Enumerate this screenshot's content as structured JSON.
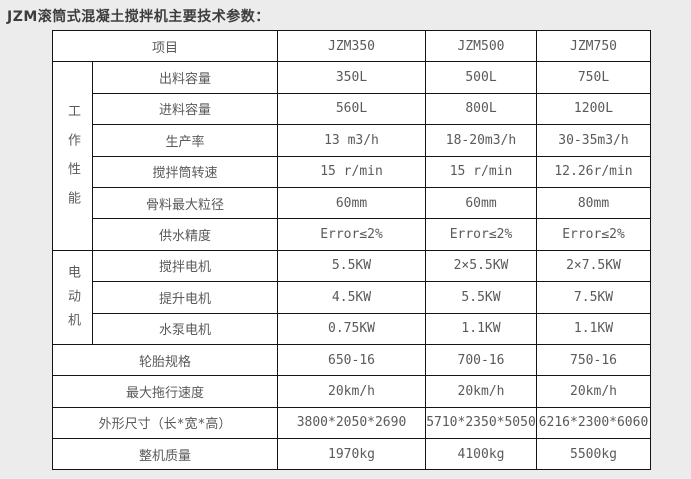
{
  "page": {
    "title": "JZM滚筒式混凝土搅拌机主要技术参数："
  },
  "colors": {
    "page_background": "#ececec",
    "cell_background": "#ffffff",
    "grid_border": "#141414",
    "cell_text": "#5a5a5a",
    "title_text": "#3d3d3d"
  },
  "table": {
    "header": {
      "item_label": "项目",
      "models": [
        "JZM350",
        "JZM500",
        "JZM750"
      ]
    },
    "groups": [
      {
        "label": "工作性能",
        "rows": [
          {
            "name": "出料容量",
            "values": [
              "350L",
              "500L",
              "750L"
            ]
          },
          {
            "name": "进料容量",
            "values": [
              "560L",
              "800L",
              "1200L"
            ]
          },
          {
            "name": "生产率",
            "values": [
              "13 m3/h",
              "18-20m3/h",
              "30-35m3/h"
            ]
          },
          {
            "name": "搅拌筒转速",
            "values": [
              "15 r/min",
              "15 r/min",
              "12.26r/min"
            ]
          },
          {
            "name": "骨料最大粒径",
            "values": [
              "60mm",
              "60mm",
              "80mm"
            ]
          },
          {
            "name": "供水精度",
            "values": [
              "Error≤2%",
              "Error≤2%",
              "Error≤2%"
            ]
          }
        ]
      },
      {
        "label": "电动机",
        "rows": [
          {
            "name": "搅拌电机",
            "values": [
              "5.5KW",
              "2×5.5KW",
              "2×7.5KW"
            ]
          },
          {
            "name": "提升电机",
            "values": [
              "4.5KW",
              "5.5KW",
              "7.5KW"
            ]
          },
          {
            "name": "水泵电机",
            "values": [
              "0.75KW",
              "1.1KW",
              "1.1KW"
            ]
          }
        ]
      }
    ],
    "span_rows": [
      {
        "name": "轮胎规格",
        "values": [
          "650-16",
          "700-16",
          "750-16"
        ]
      },
      {
        "name": "最大拖行速度",
        "values": [
          "20km/h",
          "20km/h",
          "20km/h"
        ]
      },
      {
        "name": "外形尺寸（长*宽*高）",
        "values": [
          "3800*2050*2690",
          "5710*2350*5050",
          "6216*2300*6060"
        ]
      },
      {
        "name": "整机质量",
        "values": [
          "1970kg",
          "4100kg",
          "5500kg"
        ]
      }
    ]
  }
}
